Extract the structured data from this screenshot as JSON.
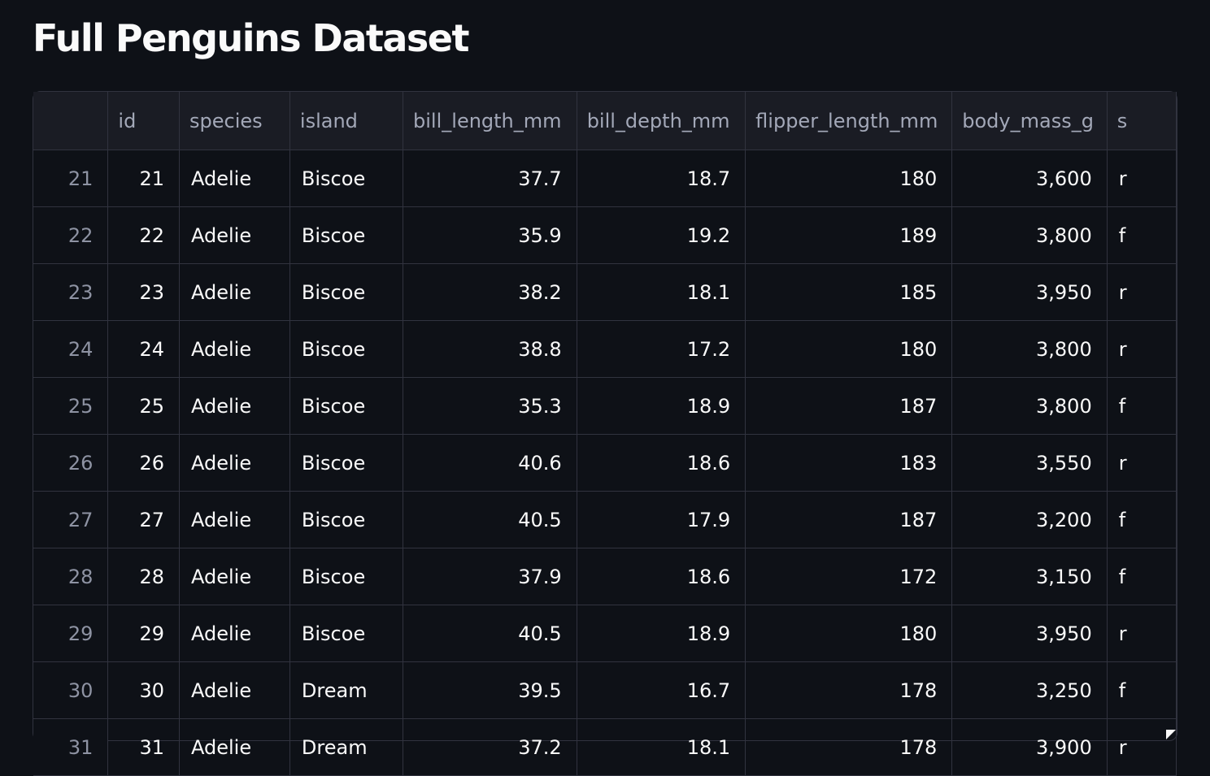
{
  "title": "Full Penguins Dataset",
  "table": {
    "columns": [
      "",
      "id",
      "species",
      "island",
      "bill_length_mm",
      "bill_depth_mm",
      "flipper_length_mm",
      "body_mass_g",
      "s"
    ],
    "rows": [
      [
        "21",
        "21",
        "Adelie",
        "Biscoe",
        "37.7",
        "18.7",
        "180",
        "3,600",
        "r"
      ],
      [
        "22",
        "22",
        "Adelie",
        "Biscoe",
        "35.9",
        "19.2",
        "189",
        "3,800",
        "f"
      ],
      [
        "23",
        "23",
        "Adelie",
        "Biscoe",
        "38.2",
        "18.1",
        "185",
        "3,950",
        "r"
      ],
      [
        "24",
        "24",
        "Adelie",
        "Biscoe",
        "38.8",
        "17.2",
        "180",
        "3,800",
        "r"
      ],
      [
        "25",
        "25",
        "Adelie",
        "Biscoe",
        "35.3",
        "18.9",
        "187",
        "3,800",
        "f"
      ],
      [
        "26",
        "26",
        "Adelie",
        "Biscoe",
        "40.6",
        "18.6",
        "183",
        "3,550",
        "r"
      ],
      [
        "27",
        "27",
        "Adelie",
        "Biscoe",
        "40.5",
        "17.9",
        "187",
        "3,200",
        "f"
      ],
      [
        "28",
        "28",
        "Adelie",
        "Biscoe",
        "37.9",
        "18.6",
        "172",
        "3,150",
        "f"
      ],
      [
        "29",
        "29",
        "Adelie",
        "Biscoe",
        "40.5",
        "18.9",
        "180",
        "3,950",
        "r"
      ],
      [
        "30",
        "30",
        "Adelie",
        "Dream",
        "39.5",
        "16.7",
        "178",
        "3,250",
        "f"
      ],
      [
        "31",
        "31",
        "Adelie",
        "Dream",
        "37.2",
        "18.1",
        "178",
        "3,900",
        "r"
      ]
    ]
  },
  "colors": {
    "background": "#0e1117",
    "header_background": "#1a1c24",
    "border": "#31333f",
    "text": "#fafafa",
    "muted_text": "#a3a8b8"
  }
}
